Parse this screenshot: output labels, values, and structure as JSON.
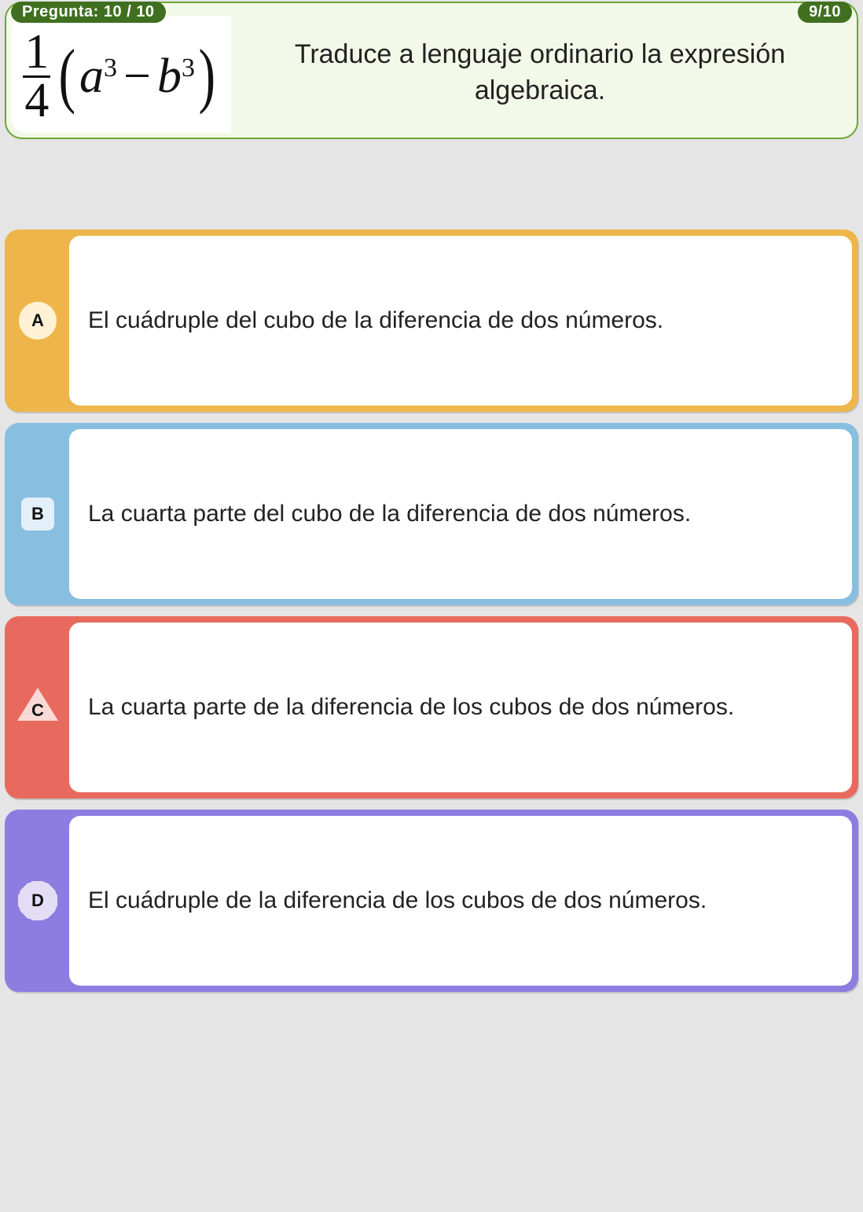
{
  "header": {
    "left_badge": "Pregunta: 10 / 10",
    "right_badge": "9/10",
    "badge_bg": "#3f6f1f",
    "badge_fg": "#ffffff"
  },
  "question": {
    "card_border": "#6da536",
    "card_bg": "#f3f9e8",
    "expression_box_bg": "#ffffff",
    "expression": {
      "numerator": "1",
      "denominator": "4",
      "var1": "a",
      "exp1": "3",
      "minus": "−",
      "var2": "b",
      "exp2": "3"
    },
    "text": "Traduce a lenguaje ordinario la expresión algebraica.",
    "text_color": "#222222",
    "text_fontsize": 34
  },
  "options": [
    {
      "letter": "A",
      "shape": "circle",
      "tab_color": "#eeb64a",
      "border_color": "#eeb64a",
      "shape_fill": "#fff2d4",
      "text": "El cuádruple del cubo de la diferencia de dos números."
    },
    {
      "letter": "B",
      "shape": "square",
      "tab_color": "#88bfe0",
      "border_color": "#88bfe0",
      "shape_fill": "#e3f0f9",
      "text": "La cuarta parte del cubo de la diferencia de dos números."
    },
    {
      "letter": "C",
      "shape": "triangle",
      "tab_color": "#e86a5e",
      "border_color": "#e86a5e",
      "shape_fill": "#f8d9d5",
      "text": "La cuarta parte de la diferencia de los cubos de dos números."
    },
    {
      "letter": "D",
      "shape": "star",
      "tab_color": "#8d7de0",
      "border_color": "#8d7de0",
      "shape_fill": "#e3def6",
      "text": "El cuádruple de la diferencia de los cubos de dos números."
    }
  ],
  "layout": {
    "page_bg": "#e5e5e5",
    "option_text_fontsize": 30,
    "option_min_height": 232,
    "gap_between_options": 14
  }
}
